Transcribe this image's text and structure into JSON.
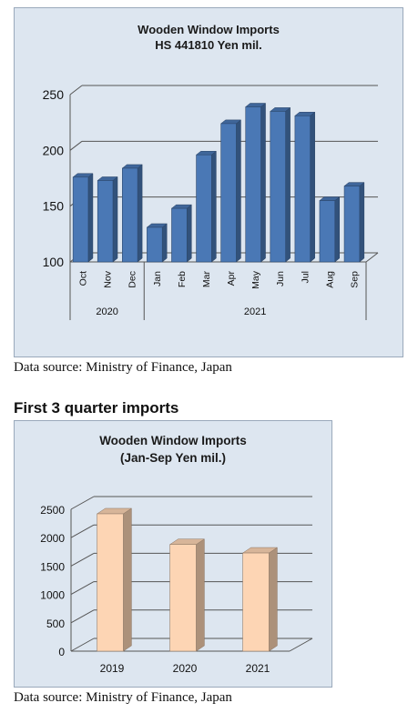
{
  "chart_data": [
    {
      "type": "bar",
      "title": "Wooden Window Imports",
      "subtitle": "HS 441810 Yen mil.",
      "categories": [
        "Oct",
        "Nov",
        "Dec",
        "Jan",
        "Feb",
        "Mar",
        "Apr",
        "May",
        "Jun",
        "Jul",
        "Aug",
        "Sep"
      ],
      "values": [
        176,
        173,
        184,
        131,
        148,
        196,
        224,
        239,
        235,
        231,
        155,
        168
      ],
      "groups": [
        {
          "label": "2020",
          "count": 3
        },
        {
          "label": "2021",
          "count": 9
        }
      ],
      "yticks": [
        100,
        150,
        200,
        250
      ],
      "ylim": [
        100,
        250
      ],
      "grid": true,
      "bar_color": "#4a78b5",
      "source": "Data source: Ministry of Finance, Japan"
    },
    {
      "type": "bar",
      "title": "Wooden Window Imports",
      "subtitle": "(Jan-Sep Yen mil.)",
      "categories": [
        "2019",
        "2020",
        "2021"
      ],
      "values": [
        2420,
        1880,
        1730
      ],
      "yticks": [
        0,
        500,
        1000,
        1500,
        2000,
        2500
      ],
      "ylim": [
        0,
        2500
      ],
      "grid": true,
      "bar_color": "#fdd5b4",
      "source": "Data source: Ministry of Finance, Japan"
    }
  ],
  "section_heading": "First 3 quarter imports"
}
